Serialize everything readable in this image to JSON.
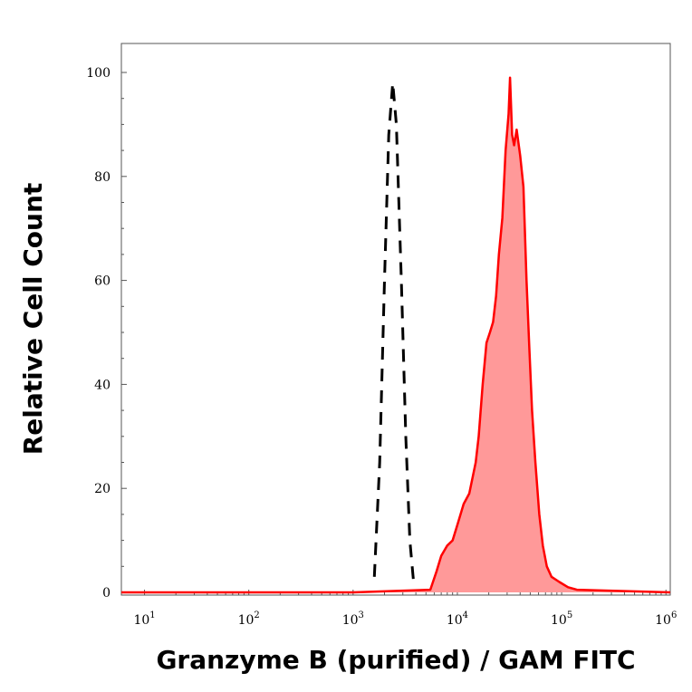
{
  "chart_data": {
    "type": "area",
    "xlabel": "Granzyme B (purified) / GAM FITC",
    "ylabel": "Relative Cell Count",
    "x_scale": "log",
    "xlim": [
      6,
      1100000
    ],
    "ylim": [
      0,
      100
    ],
    "x_ticks": [
      {
        "base": "10",
        "exp": "1",
        "value": 10
      },
      {
        "base": "10",
        "exp": "2",
        "value": 100
      },
      {
        "base": "10",
        "exp": "3",
        "value": 1000
      },
      {
        "base": "10",
        "exp": "4",
        "value": 10000
      },
      {
        "base": "10",
        "exp": "5",
        "value": 100000
      },
      {
        "base": "10",
        "exp": "6",
        "value": 1000000
      }
    ],
    "y_ticks": [
      "0",
      "20",
      "40",
      "60",
      "80",
      "100"
    ],
    "series": [
      {
        "style": "dashed-black",
        "color": "#000000",
        "points": [
          [
            1600,
            3
          ],
          [
            1800,
            25
          ],
          [
            2000,
            60
          ],
          [
            2200,
            88
          ],
          [
            2400,
            98
          ],
          [
            2600,
            90
          ],
          [
            2900,
            60
          ],
          [
            3200,
            30
          ],
          [
            3500,
            10
          ],
          [
            3800,
            2
          ]
        ]
      },
      {
        "style": "filled-red",
        "color": "#ff0000",
        "fill": "#ff9999",
        "points": [
          [
            6,
            0
          ],
          [
            1000,
            0
          ],
          [
            5500,
            0.5
          ],
          [
            6300,
            4
          ],
          [
            7000,
            7
          ],
          [
            8000,
            9
          ],
          [
            9000,
            10
          ],
          [
            10000,
            13
          ],
          [
            11500,
            17
          ],
          [
            13000,
            19
          ],
          [
            15000,
            25
          ],
          [
            16000,
            30
          ],
          [
            17500,
            40
          ],
          [
            19000,
            48
          ],
          [
            20500,
            50
          ],
          [
            22000,
            52
          ],
          [
            23500,
            57
          ],
          [
            25000,
            65
          ],
          [
            27000,
            72
          ],
          [
            29000,
            85
          ],
          [
            31000,
            92
          ],
          [
            32000,
            99
          ],
          [
            33500,
            88
          ],
          [
            35000,
            86
          ],
          [
            37000,
            89
          ],
          [
            40000,
            84
          ],
          [
            43000,
            78
          ],
          [
            46000,
            60
          ],
          [
            49000,
            47
          ],
          [
            52000,
            35
          ],
          [
            56000,
            25
          ],
          [
            61000,
            15
          ],
          [
            66000,
            9
          ],
          [
            72000,
            5
          ],
          [
            80000,
            3
          ],
          [
            95000,
            2
          ],
          [
            115000,
            1
          ],
          [
            140000,
            0.5
          ],
          [
            1100000,
            0
          ]
        ]
      }
    ],
    "grid": false,
    "legend": "none"
  }
}
